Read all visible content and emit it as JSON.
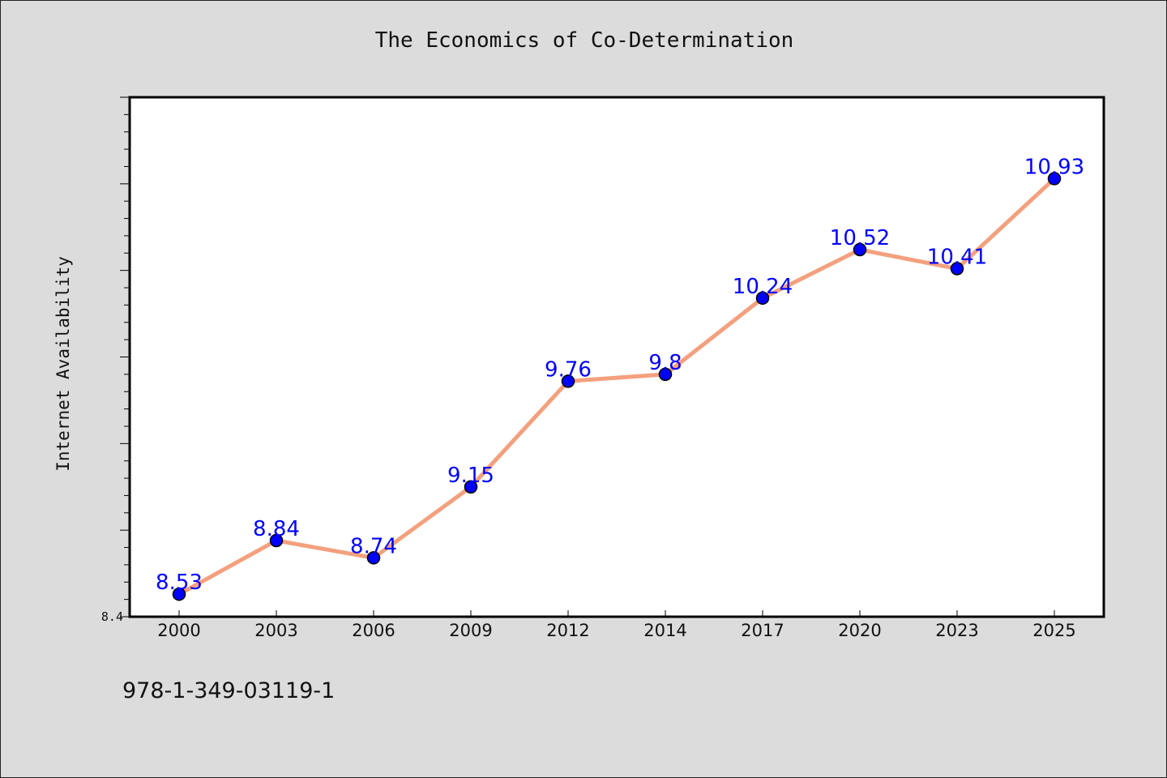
{
  "chart_data": {
    "type": "line",
    "title": "The Economics of Co-Determination",
    "xlabel": "",
    "ylabel": "Internet Availability",
    "categories": [
      "2000",
      "2003",
      "2006",
      "2009",
      "2012",
      "2014",
      "2017",
      "2020",
      "2023",
      "2025"
    ],
    "series": [
      {
        "values": [
          8.53,
          8.84,
          8.74,
          9.15,
          9.76,
          9.8,
          10.24,
          10.52,
          10.41,
          10.93
        ],
        "labels": [
          "8.53",
          "8.84",
          "8.74",
          "9.15",
          "9.76",
          "9.8",
          "10.24",
          "10.52",
          "10.41",
          "10.93"
        ]
      }
    ],
    "ylim": [
      8.4,
      11.4
    ],
    "ytick_labels": [
      "8.4"
    ],
    "grid": false,
    "colors": {
      "line": "#f4a07e",
      "marker": "#0000ff",
      "data_label": "#0000ff",
      "plot_background": "#ffffff",
      "page_background": "#dcdcdc"
    }
  },
  "footnote": "978-1-349-03119-1"
}
